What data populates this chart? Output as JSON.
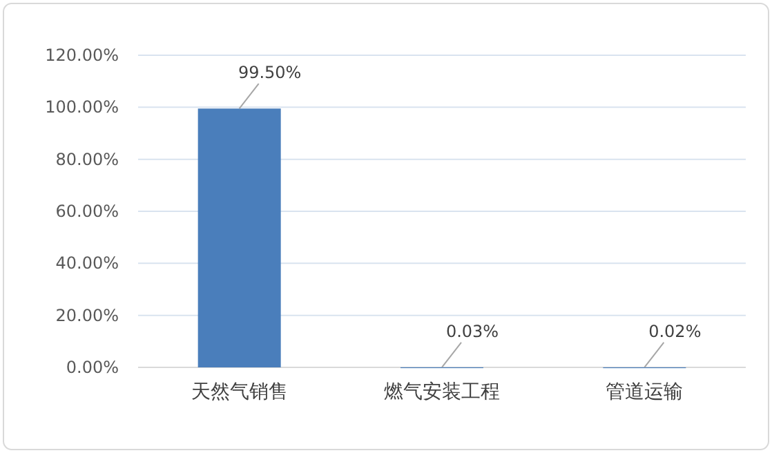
{
  "chart_data": {
    "type": "bar",
    "categories": [
      "天然气销售",
      "燃气安装工程",
      "管道运输"
    ],
    "values": [
      99.5,
      0.03,
      0.02
    ],
    "value_labels": [
      "99.50%",
      "0.03%",
      "0.02%"
    ],
    "color": "#4a7ebb",
    "ylim": [
      0,
      120
    ],
    "yticks": [
      {
        "value": 0,
        "label": "0.00%"
      },
      {
        "value": 20,
        "label": "20.00%"
      },
      {
        "value": 40,
        "label": "40.00%"
      },
      {
        "value": 60,
        "label": "60.00%"
      },
      {
        "value": 80,
        "label": "80.00%"
      },
      {
        "value": 100,
        "label": "100.00%"
      },
      {
        "value": 120,
        "label": "120.00%"
      }
    ],
    "grid": "y"
  }
}
